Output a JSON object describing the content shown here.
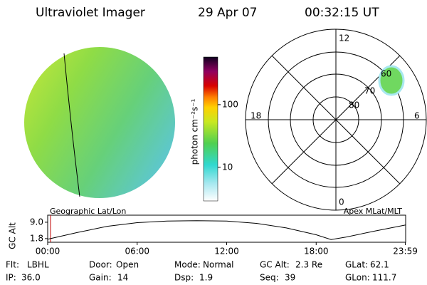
{
  "header": {
    "title": "Ultraviolet Imager",
    "date": "29 Apr 07",
    "time": "00:32:15 UT"
  },
  "image": {
    "label": "Geographic Lat/Lon"
  },
  "colorbar": {
    "label": "photon cm⁻²s⁻¹",
    "ticks": [
      10,
      100
    ],
    "lim": [
      2.9,
      577
    ],
    "log": true
  },
  "polar": {
    "label": "Apex MLat/MLT",
    "hours": [
      "12",
      "18",
      "6",
      "0"
    ],
    "lats": [
      "60",
      "70",
      "80"
    ]
  },
  "altplot": {
    "ylabel": "GC Alt",
    "yticks": [
      {
        "value": 9.0,
        "label": "9.0"
      },
      1.8
    ],
    "ylim": [
      0.2,
      12.1
    ],
    "xlim": [
      0,
      24
    ],
    "xticks": [
      {
        "value": 0,
        "label": "00:00"
      },
      {
        "value": 6,
        "label": "06:00"
      },
      {
        "value": 12,
        "label": "12:00"
      },
      {
        "value": 18,
        "label": "18:00"
      },
      {
        "value": 23.98,
        "label": "23:59"
      }
    ],
    "x": [
      0,
      2,
      4,
      6,
      8,
      10,
      12,
      14,
      16,
      18,
      19,
      20,
      22,
      24
    ],
    "values": [
      1.5,
      4.5,
      7.2,
      8.8,
      9.5,
      9.7,
      9.5,
      8.5,
      6.5,
      3.5,
      1.4,
      2.5,
      5.2,
      7.8
    ]
  },
  "info": [
    [
      [
        "Flt:",
        "LBHL"
      ],
      [
        "Door:",
        "Open"
      ],
      [
        "Mode:",
        "Normal"
      ],
      [
        "GC Alt:",
        "2.3 Re"
      ],
      [
        "GLat:",
        "62.1"
      ]
    ],
    [
      [
        "IP:",
        "36.0"
      ],
      [
        "Gain:",
        "14"
      ],
      [
        "Dsp:",
        "1.9"
      ],
      [
        "Seq:",
        "39"
      ],
      [
        "GLon:",
        "111.7"
      ]
    ]
  ]
}
